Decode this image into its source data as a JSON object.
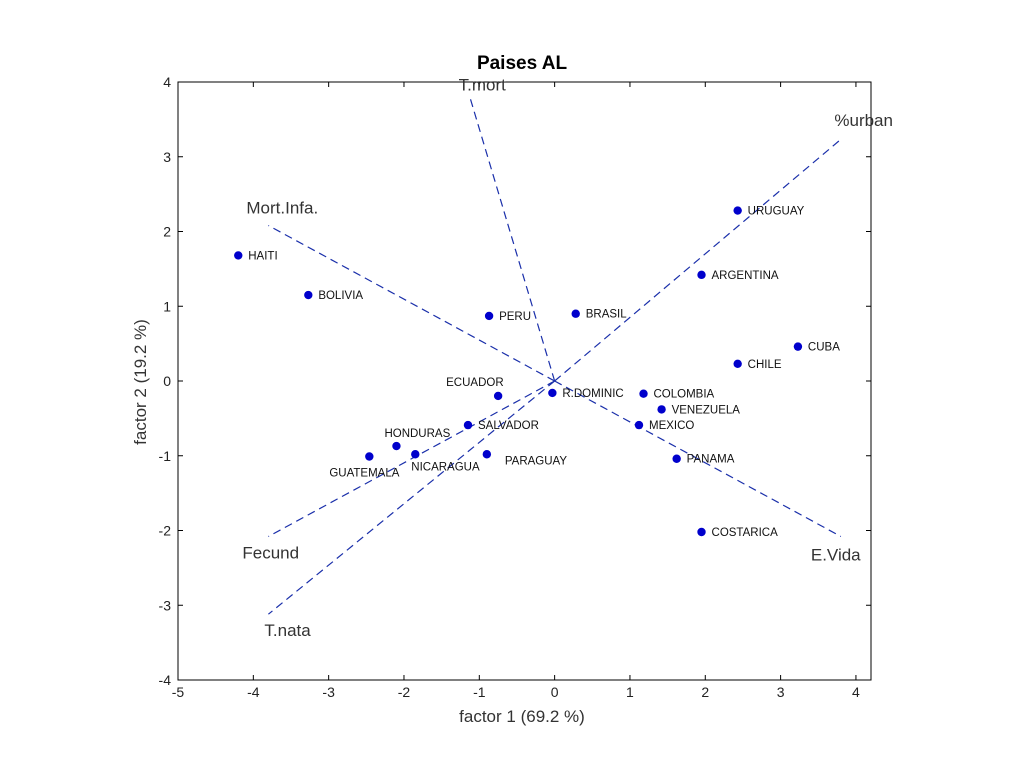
{
  "chart_data": {
    "type": "scatter",
    "title": "Paises AL",
    "xlabel": "factor  1  (69.2 %)",
    "ylabel": "factor  2  (19.2 %)",
    "xlim": [
      -5,
      4.2
    ],
    "ylim": [
      -4,
      4
    ],
    "xticks": [
      -5,
      -4,
      -3,
      -2,
      -1,
      0,
      1,
      2,
      3,
      4
    ],
    "yticks": [
      -4,
      -3,
      -2,
      -1,
      0,
      1,
      2,
      3,
      4
    ],
    "grid": false,
    "point_color": "#0000cc",
    "line_color": "#1a2faa",
    "points": [
      {
        "label": "HAITI",
        "x": -4.2,
        "y": 1.68
      },
      {
        "label": "BOLIVIA",
        "x": -3.27,
        "y": 1.15
      },
      {
        "label": "PERU",
        "x": -0.87,
        "y": 0.87
      },
      {
        "label": "BRASIL",
        "x": 0.28,
        "y": 0.9
      },
      {
        "label": "URUGUAY",
        "x": 2.43,
        "y": 2.28
      },
      {
        "label": "ARGENTINA",
        "x": 1.95,
        "y": 1.42
      },
      {
        "label": "CUBA",
        "x": 3.23,
        "y": 0.46
      },
      {
        "label": "CHILE",
        "x": 2.43,
        "y": 0.23
      },
      {
        "label": "ECUADOR",
        "x": -0.75,
        "y": -0.2
      },
      {
        "label": "R.DOMINIC",
        "x": -0.03,
        "y": -0.16
      },
      {
        "label": "COLOMBIA",
        "x": 1.18,
        "y": -0.17
      },
      {
        "label": "VENEZUELA",
        "x": 1.42,
        "y": -0.38
      },
      {
        "label": "MEXICO",
        "x": 1.12,
        "y": -0.59
      },
      {
        "label": "SALVADOR",
        "x": -1.15,
        "y": -0.59
      },
      {
        "label": "HONDURAS",
        "x": -2.1,
        "y": -0.87
      },
      {
        "label": "GUATEMALA",
        "x": -2.46,
        "y": -1.01
      },
      {
        "label": "NICARAGUA",
        "x": -1.85,
        "y": -0.98
      },
      {
        "label": "PARAGUAY",
        "x": -0.9,
        "y": -0.98
      },
      {
        "label": "PANAMA",
        "x": 1.62,
        "y": -1.04
      },
      {
        "label": "COSTARICA",
        "x": 1.95,
        "y": -2.02
      }
    ],
    "vectors": [
      {
        "label": "T.mort",
        "x": -1.12,
        "y": 3.78
      },
      {
        "label": "%urban",
        "x": 3.82,
        "y": 3.25
      },
      {
        "label": "Mort.Infa.",
        "x": -3.8,
        "y": 2.08
      },
      {
        "label": "E.Vida",
        "x": 3.8,
        "y": -2.08
      },
      {
        "label": "Fecund",
        "x": -3.8,
        "y": -2.08
      },
      {
        "label": "T.nata",
        "x": -3.8,
        "y": -3.12
      }
    ]
  }
}
